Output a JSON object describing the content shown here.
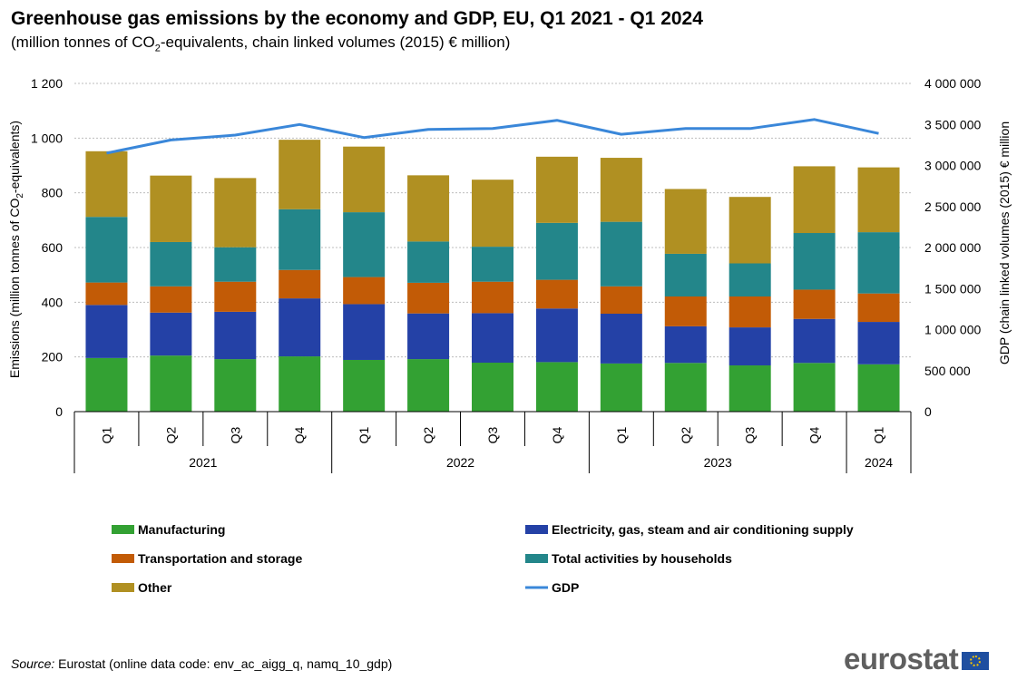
{
  "chart_data": {
    "type": "bar",
    "stacked": true,
    "title": "Greenhouse gas emissions by the economy and GDP, EU, Q1 2021 - Q1 2024",
    "subtitle": {
      "prefix": "(million tonnes of CO",
      "sub": "2",
      "suffix": "-equivalents, chain linked volumes (2015) € million)"
    },
    "ylabel": {
      "prefix": "Emissions (million tonnes of CO",
      "sub": "2",
      "suffix": "-equivalents)"
    },
    "y2label": "GDP (chain linked volumes (2015) € million",
    "ylim": [
      0,
      1200
    ],
    "yticks": [
      0,
      200,
      400,
      600,
      800,
      1000,
      1200
    ],
    "ytick_labels": [
      "0",
      "200",
      "400",
      "600",
      "800",
      "1 000",
      "1 200"
    ],
    "y2lim": [
      0,
      4000000
    ],
    "y2ticks": [
      0,
      500000,
      1000000,
      1500000,
      2000000,
      2500000,
      3000000,
      3500000,
      4000000
    ],
    "y2tick_labels": [
      "0",
      "500 000",
      "1 000 000",
      "1 500 000",
      "2 000 000",
      "2 500 000",
      "3 000 000",
      "3 500 000",
      "4 000 000"
    ],
    "grid": true,
    "categories": [
      "Q1",
      "Q2",
      "Q3",
      "Q4",
      "Q1",
      "Q2",
      "Q3",
      "Q4",
      "Q1",
      "Q2",
      "Q3",
      "Q4",
      "Q1"
    ],
    "year_groups": [
      {
        "label": "2021",
        "count": 4
      },
      {
        "label": "2022",
        "count": 4
      },
      {
        "label": "2023",
        "count": 4
      },
      {
        "label": "2024",
        "count": 1
      }
    ],
    "series": [
      {
        "name": "Manufacturing",
        "color": "#33a133",
        "values": [
          196,
          205,
          192,
          202,
          189,
          192,
          179,
          181,
          176,
          178,
          169,
          178,
          173
        ]
      },
      {
        "name": "Electricity, gas, steam and air conditioning supply",
        "color": "#2441a6",
        "values": [
          194,
          157,
          173,
          212,
          204,
          167,
          181,
          196,
          182,
          134,
          139,
          161,
          155
        ]
      },
      {
        "name": "Transportation and storage",
        "color": "#c25b06",
        "values": [
          82,
          96,
          110,
          104,
          99,
          112,
          115,
          105,
          100,
          109,
          113,
          107,
          104
        ]
      },
      {
        "name": "Total activities by households",
        "color": "#23868a",
        "values": [
          240,
          162,
          126,
          222,
          237,
          151,
          128,
          208,
          236,
          156,
          121,
          207,
          224
        ]
      },
      {
        "name": "Other",
        "color": "#b09022",
        "values": [
          240,
          243,
          253,
          254,
          240,
          242,
          245,
          242,
          234,
          237,
          243,
          244,
          237
        ]
      }
    ],
    "line_series": {
      "name": "GDP",
      "color": "#3a87d9",
      "axis": "right",
      "values": [
        3150000,
        3310000,
        3370000,
        3500000,
        3340000,
        3440000,
        3450000,
        3550000,
        3380000,
        3450000,
        3450000,
        3560000,
        3390000
      ]
    },
    "legend_position": "bottom"
  },
  "source": {
    "label": "Source:",
    "text": " Eurostat (online data code: env_ac_aigg_q, namq_10_gdp)"
  },
  "logo": {
    "text": "eurostat"
  }
}
